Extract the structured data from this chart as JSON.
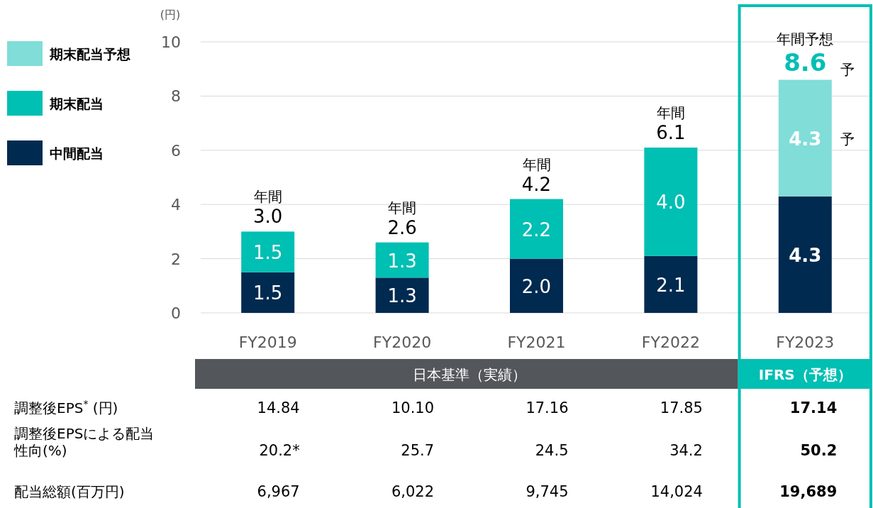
{
  "chart_data": {
    "type": "bar",
    "stacked": true,
    "ylabel": "(円)",
    "categories": [
      "FY2019",
      "FY2020",
      "FY2021",
      "FY2022",
      "FY2023"
    ],
    "series": [
      {
        "name": "中間配当",
        "color": "#002a50",
        "values": [
          1.5,
          1.3,
          2.0,
          2.1,
          4.3
        ],
        "value_labels": [
          "1.5",
          "1.3",
          "2.0",
          "2.1",
          "4.3"
        ]
      },
      {
        "name": "期末配当",
        "color": "#00bfb3",
        "values": [
          1.5,
          1.3,
          2.2,
          4.0,
          null
        ],
        "value_labels": [
          "1.5",
          "1.3",
          "2.2",
          "4.0",
          null
        ]
      },
      {
        "name": "期末配当予想",
        "color": "#80ddd8",
        "values": [
          null,
          null,
          null,
          null,
          4.3
        ],
        "value_labels": [
          null,
          null,
          null,
          null,
          "4.3"
        ]
      }
    ],
    "ylim": [
      0,
      10
    ],
    "yticks": [
      0,
      2,
      4,
      6,
      8,
      10
    ],
    "grid": "y",
    "legend": "left",
    "totals": [
      "3.0",
      "2.6",
      "4.2",
      "6.1",
      "8.6"
    ],
    "annotations": [
      "日本基準（実績）",
      "IFRS（予想）",
      "予",
      {
        "text": "年間",
        "x": "FY2019",
        "y": 3.0
      },
      {
        "text": "年間",
        "x": "FY2020",
        "y": 2.6
      },
      {
        "text": "年間",
        "x": "FY2021",
        "y": 4.2
      },
      {
        "text": "年間",
        "x": "FY2022",
        "y": 6.1
      },
      {
        "text": "年間予想",
        "x": "FY2023",
        "y": 8.6
      },
      {
        "text": "予",
        "x": "FY2023",
        "y": 8.6
      },
      "調整後EPS$^{*}$ (円)",
      "14.84",
      "10.10",
      "17.16",
      "17.85",
      "17.14",
      "調整後EPSによる配当性向(%)",
      "20.2*",
      "25.7",
      "24.5",
      "34.2",
      "50.2",
      "配当総額(百万円)",
      "6,967",
      "6,022",
      "9,745",
      "14,024",
      "19,689"
    ]
  }
}
